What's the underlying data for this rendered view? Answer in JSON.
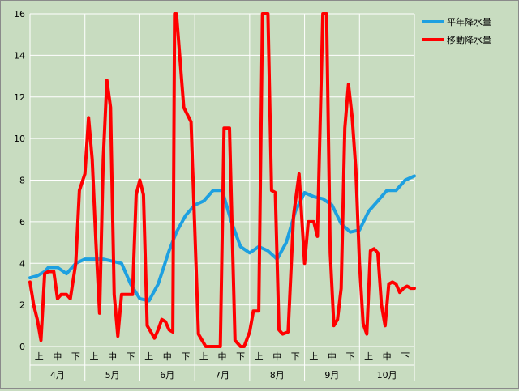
{
  "chart_data": {
    "type": "line",
    "title": "",
    "xlabel": "",
    "ylabel": "",
    "ylim": [
      0,
      16
    ],
    "yticks": [
      0,
      2,
      4,
      6,
      8,
      10,
      12,
      14,
      16
    ],
    "grid": true,
    "legend_position": "top-right",
    "colors": {
      "plot_bg": "#c8dcc0",
      "grid": "#ffffff",
      "series1": "#1ea0e0",
      "series2": "#ff0000"
    },
    "sub_categories": [
      "上",
      "中",
      "下"
    ],
    "months": [
      "4月",
      "5月",
      "6月",
      "7月",
      "8月",
      "9月",
      "10月"
    ],
    "series": [
      {
        "name": "平年降水量",
        "x": [
          0,
          0.4,
          0.8,
          1,
          1.5,
          2,
          2.5,
          3,
          3.5,
          4,
          4.5,
          5,
          5.5,
          6,
          6.5,
          7,
          7.3,
          7.6,
          8,
          8.5,
          9,
          9.5,
          10,
          10.5,
          11,
          11.5,
          12,
          12.5,
          13,
          13.5,
          14,
          14.5,
          15,
          15.5,
          16,
          16.5,
          17,
          17.5,
          18,
          18.5,
          19,
          19.5,
          20,
          20.5,
          21
        ],
        "values": [
          3.3,
          3.4,
          3.6,
          3.8,
          3.8,
          3.5,
          4.0,
          4.2,
          4.2,
          4.2,
          4.1,
          4.0,
          3.0,
          2.3,
          2.2,
          3.0,
          3.8,
          4.6,
          5.5,
          6.3,
          6.8,
          7.0,
          7.5,
          7.5,
          6.0,
          4.8,
          4.5,
          4.8,
          4.6,
          4.2,
          5.0,
          6.5,
          7.4,
          7.2,
          7.1,
          6.8,
          5.9,
          5.5,
          5.6,
          6.5,
          7.0,
          7.5,
          7.5,
          8.0,
          8.2
        ]
      },
      {
        "name": "移動降水量",
        "x": [
          0,
          0.2,
          0.4,
          0.6,
          0.8,
          1,
          1.3,
          1.5,
          1.7,
          2,
          2.2,
          2.5,
          2.7,
          3,
          3.2,
          3.4,
          3.6,
          3.8,
          4,
          4.2,
          4.4,
          4.6,
          4.8,
          5,
          5.3,
          5.6,
          5.8,
          6,
          6.2,
          6.4,
          6.6,
          6.8,
          7,
          7.2,
          7.4,
          7.6,
          7.8,
          7.9,
          8,
          8.4,
          8.8,
          9.2,
          9.6,
          10,
          10.2,
          10.4,
          10.6,
          10.9,
          11.2,
          11.5,
          11.7,
          12,
          12.2,
          12.5,
          12.7,
          13,
          13.2,
          13.4,
          13.6,
          13.8,
          14.1,
          14.4,
          14.7,
          15,
          15.2,
          15.5,
          15.7,
          16,
          16.2,
          16.4,
          16.6,
          16.8,
          17,
          17.2,
          17.4,
          17.6,
          17.8,
          18,
          18.2,
          18.4,
          18.6,
          18.8,
          19,
          19.2,
          19.4,
          19.6,
          19.8,
          20,
          20.2,
          20.4,
          20.6,
          20.8,
          21
        ],
        "values": [
          3.1,
          2.0,
          1.3,
          0.3,
          3.5,
          3.6,
          3.6,
          2.3,
          2.5,
          2.5,
          2.3,
          4.0,
          7.5,
          8.3,
          11.0,
          9.0,
          5.0,
          1.6,
          9.0,
          12.8,
          11.5,
          2.5,
          0.5,
          2.5,
          2.5,
          2.5,
          7.3,
          8.0,
          7.3,
          1.0,
          0.7,
          0.4,
          0.8,
          1.3,
          1.2,
          0.8,
          0.7,
          16,
          16,
          11.5,
          10.8,
          0.6,
          0,
          0,
          0,
          0,
          10.5,
          10.5,
          0.3,
          0,
          0,
          0.7,
          1.7,
          1.7,
          16,
          16,
          7.5,
          7.4,
          0.8,
          0.6,
          0.7,
          6.3,
          8.3,
          4.0,
          6.0,
          6.0,
          5.3,
          16,
          16,
          4.5,
          1.0,
          1.3,
          2.8,
          10.5,
          12.6,
          11.0,
          8.5,
          4.0,
          1.1,
          0.6,
          4.6,
          4.7,
          4.5,
          2.0,
          1.0,
          3.0,
          3.1,
          3.0,
          2.6,
          2.8,
          2.9,
          2.8,
          2.8
        ]
      }
    ]
  }
}
